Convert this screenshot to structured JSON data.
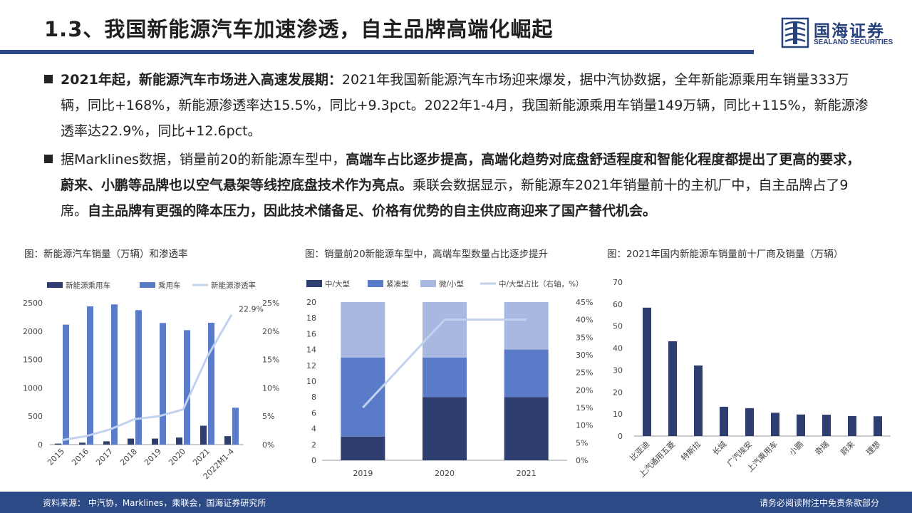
{
  "header": {
    "title": "1.3、我国新能源汽车加速渗透，自主品牌高端化崛起",
    "logo_cn": "国海证券",
    "logo_en": "SEALAND SECURITIES"
  },
  "bullets": [
    {
      "bold_lead": "2021年起，新能源汽车市场进入高速发展期：",
      "text": "2021年我国新能源汽车市场迎来爆发，据中汽协数据，全年新能源乘用车销量333万辆，同比+168%，新能源渗透率达15.5%，同比+9.3pct。2022年1-4月，我国新能源乘用车销量149万辆，同比+115%，新能源渗透率达22.9%，同比+12.6pct。"
    },
    {
      "p1": "据Marklines数据，销量前20的新能源车型中，",
      "b1": "高端车占比逐步提高，高端化趋势对底盘舒适程度和智能化程度都提出了更高的要求，蔚来、小鹏等品牌也以空气悬架等线控底盘技术作为亮点。",
      "p2": "乘联会数据显示，新能源车2021年销量前十的主机厂中，自主品牌占了9席。",
      "b2": "自主品牌有更强的降本压力，因此技术储备足、价格有优势的自主供应商迎来了国产替代机会。"
    }
  ],
  "captions": {
    "chart1": "图：新能源汽车销量（万辆）和渗透率",
    "chart2": "图：销量前20新能源车型中，高端车型数量占比逐步提升",
    "chart3": "图：2021年国内新能源车销量前十厂商及销量（万辆）"
  },
  "footer": {
    "source": "资料来源：  中汽协，Marklines，乘联会，国海证券研究所",
    "disclaimer": "请务必阅读附注中免责条款部分"
  },
  "colors": {
    "dark": "#2e3e6e",
    "mid": "#5a7bc7",
    "light": "#a9b8e0",
    "line": "#c2d1ee",
    "brand": "#2c4a86"
  },
  "chart_data": [
    {
      "type": "bar",
      "title": "图：新能源汽车销量（万辆）和渗透率",
      "categories": [
        "2015",
        "2016",
        "2017",
        "2018",
        "2019",
        "2020",
        "2021",
        "2022M1-4"
      ],
      "series": [
        {
          "name": "新能源乘用车",
          "kind": "bar",
          "axis": "left",
          "values": [
            18,
            34,
            58,
            106,
            106,
            125,
            333,
            149
          ]
        },
        {
          "name": "乘用车",
          "kind": "bar",
          "axis": "left",
          "values": [
            2115,
            2438,
            2472,
            2371,
            2144,
            2018,
            2148,
            651
          ]
        },
        {
          "name": "新能源渗透率",
          "kind": "line",
          "axis": "right",
          "values": [
            0.8,
            1.5,
            2.7,
            4.5,
            5.0,
            6.2,
            15.5,
            22.9
          ]
        }
      ],
      "ylim": [
        0,
        2500
      ],
      "yticks": [
        "0",
        "500",
        "1000",
        "1500",
        "2000",
        "2500"
      ],
      "y2lim": [
        0,
        25
      ],
      "y2ticks": [
        "0%",
        "5%",
        "10%",
        "15%",
        "20%",
        "25%"
      ],
      "annotation": "22.9%"
    },
    {
      "type": "bar",
      "stacked": true,
      "title": "图：销量前20新能源车型中，高端车型数量占比逐步提升",
      "categories": [
        "2019",
        "2020",
        "2021"
      ],
      "series": [
        {
          "name": "中/大型",
          "kind": "bar",
          "axis": "left",
          "values": [
            3,
            8,
            8
          ]
        },
        {
          "name": "紧凑型",
          "kind": "bar",
          "axis": "left",
          "values": [
            10,
            5,
            6
          ]
        },
        {
          "name": "微/小型",
          "kind": "bar",
          "axis": "left",
          "values": [
            7,
            7,
            6
          ]
        },
        {
          "name": "中/大型占比（右轴，%）",
          "kind": "line",
          "axis": "right",
          "values": [
            15,
            40,
            40
          ]
        }
      ],
      "ylim": [
        0,
        20
      ],
      "yticks": [
        "0",
        "2",
        "4",
        "6",
        "8",
        "10",
        "12",
        "14",
        "16",
        "18",
        "20"
      ],
      "y2lim": [
        0,
        45
      ],
      "y2ticks": [
        "0%",
        "5%",
        "10%",
        "15%",
        "20%",
        "25%",
        "30%",
        "35%",
        "40%",
        "45%"
      ]
    },
    {
      "type": "bar",
      "title": "图：2021年国内新能源车销量前十厂商及销量（万辆）",
      "categories": [
        "比亚迪",
        "上汽通用五菱",
        "特斯拉",
        "长城",
        "广汽埃安",
        "上汽乘用车",
        "小鹏",
        "奇瑞",
        "蔚来",
        "理想"
      ],
      "values": [
        58.4,
        43.1,
        32.1,
        13.3,
        12.7,
        10.6,
        9.8,
        9.7,
        9.1,
        9.0
      ],
      "ylim": [
        0,
        70
      ],
      "yticks": [
        "0",
        "10",
        "20",
        "30",
        "40",
        "50",
        "60",
        "70"
      ]
    }
  ]
}
